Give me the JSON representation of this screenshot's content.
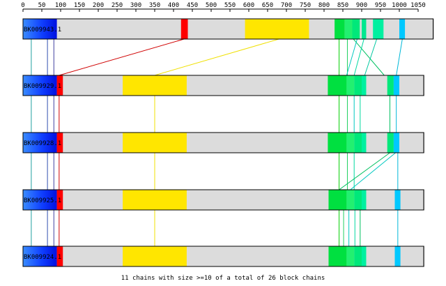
{
  "axis": {
    "ticks": [
      0,
      50,
      100,
      150,
      200,
      250,
      300,
      350,
      400,
      450,
      500,
      550,
      600,
      650,
      700,
      750,
      800,
      850,
      900,
      950,
      1000,
      1050
    ],
    "max": 1050
  },
  "sequences": [
    {
      "id": "BK009943.1",
      "length": 1090,
      "blocks": [
        {
          "start": 0,
          "end": 90,
          "color": "blue-gradient"
        },
        {
          "start": 420,
          "end": 438,
          "color": "#ff0000"
        },
        {
          "start": 590,
          "end": 760,
          "color": "#ffe600"
        },
        {
          "start": 828,
          "end": 855,
          "color": "#00e040"
        },
        {
          "start": 855,
          "end": 875,
          "color": "#22f070"
        },
        {
          "start": 875,
          "end": 895,
          "color": "#00e87a"
        },
        {
          "start": 900,
          "end": 912,
          "color": "#00e890"
        },
        {
          "start": 930,
          "end": 958,
          "color": "#00f0a0"
        },
        {
          "start": 1000,
          "end": 1015,
          "color": "#00c8ff"
        }
      ]
    },
    {
      "id": "BK009929.1",
      "length": 1065,
      "blocks": [
        {
          "start": 0,
          "end": 90,
          "color": "blue-gradient"
        },
        {
          "start": 90,
          "end": 106,
          "color": "#ff0000"
        },
        {
          "start": 265,
          "end": 435,
          "color": "#ffe600"
        },
        {
          "start": 810,
          "end": 860,
          "color": "#00e040"
        },
        {
          "start": 860,
          "end": 880,
          "color": "#22f070"
        },
        {
          "start": 880,
          "end": 900,
          "color": "#00e87a"
        },
        {
          "start": 900,
          "end": 912,
          "color": "#00f0a0"
        },
        {
          "start": 968,
          "end": 985,
          "color": "#00e87a"
        },
        {
          "start": 985,
          "end": 1000,
          "color": "#00c8ff"
        }
      ]
    },
    {
      "id": "BK009928.1",
      "length": 1065,
      "blocks": [
        {
          "start": 0,
          "end": 90,
          "color": "blue-gradient"
        },
        {
          "start": 90,
          "end": 106,
          "color": "#ff0000"
        },
        {
          "start": 265,
          "end": 435,
          "color": "#ffe600"
        },
        {
          "start": 810,
          "end": 860,
          "color": "#00e040"
        },
        {
          "start": 860,
          "end": 880,
          "color": "#22f070"
        },
        {
          "start": 880,
          "end": 900,
          "color": "#00e87a"
        },
        {
          "start": 900,
          "end": 912,
          "color": "#00f0a0"
        },
        {
          "start": 968,
          "end": 985,
          "color": "#00e87a"
        },
        {
          "start": 985,
          "end": 1000,
          "color": "#00c8ff"
        }
      ]
    },
    {
      "id": "BK009925.1",
      "length": 1065,
      "blocks": [
        {
          "start": 0,
          "end": 90,
          "color": "blue-gradient"
        },
        {
          "start": 90,
          "end": 106,
          "color": "#ff0000"
        },
        {
          "start": 265,
          "end": 435,
          "color": "#ffe600"
        },
        {
          "start": 812,
          "end": 860,
          "color": "#00e040"
        },
        {
          "start": 860,
          "end": 880,
          "color": "#22f070"
        },
        {
          "start": 880,
          "end": 900,
          "color": "#00e87a"
        },
        {
          "start": 900,
          "end": 912,
          "color": "#00f0a0"
        },
        {
          "start": 988,
          "end": 1003,
          "color": "#00c8ff"
        }
      ]
    },
    {
      "id": "BK009924.1",
      "length": 1065,
      "blocks": [
        {
          "start": 0,
          "end": 90,
          "color": "blue-gradient"
        },
        {
          "start": 90,
          "end": 106,
          "color": "#ff0000"
        },
        {
          "start": 265,
          "end": 435,
          "color": "#ffe600"
        },
        {
          "start": 812,
          "end": 860,
          "color": "#00e040"
        },
        {
          "start": 860,
          "end": 880,
          "color": "#22f070"
        },
        {
          "start": 880,
          "end": 900,
          "color": "#00e87a"
        },
        {
          "start": 900,
          "end": 912,
          "color": "#00f0a0"
        },
        {
          "start": 988,
          "end": 1003,
          "color": "#00c8ff"
        }
      ]
    }
  ],
  "links": [
    {
      "from": 0,
      "to": 1,
      "color": "#20a0a0",
      "a": 22,
      "b": 22
    },
    {
      "from": 0,
      "to": 1,
      "color": "#3050b0",
      "a": 65,
      "b": 65
    },
    {
      "from": 0,
      "to": 1,
      "color": "#4040a0",
      "a": 82,
      "b": 82
    },
    {
      "from": 0,
      "to": 1,
      "color": "#d00000",
      "a": 428,
      "b": 96
    },
    {
      "from": 0,
      "to": 1,
      "color": "#f0e000",
      "a": 680,
      "b": 350
    },
    {
      "from": 0,
      "to": 1,
      "color": "#00d000",
      "a": 840,
      "b": 840
    },
    {
      "from": 0,
      "to": 1,
      "color": "#20d060",
      "a": 862,
      "b": 862
    },
    {
      "from": 0,
      "to": 1,
      "color": "#00c060",
      "a": 878,
      "b": 960
    },
    {
      "from": 0,
      "to": 1,
      "color": "#00c8c0",
      "a": 888,
      "b": 860
    },
    {
      "from": 0,
      "to": 1,
      "color": "#00d8a0",
      "a": 906,
      "b": 880
    },
    {
      "from": 0,
      "to": 1,
      "color": "#00c8a0",
      "a": 940,
      "b": 908
    },
    {
      "from": 0,
      "to": 1,
      "color": "#00b8d8",
      "a": 1008,
      "b": 992
    },
    {
      "from": 1,
      "to": 2,
      "color": "#20a0a0",
      "a": 22,
      "b": 22
    },
    {
      "from": 1,
      "to": 2,
      "color": "#3050b0",
      "a": 65,
      "b": 65
    },
    {
      "from": 1,
      "to": 2,
      "color": "#4040a0",
      "a": 82,
      "b": 82
    },
    {
      "from": 1,
      "to": 2,
      "color": "#d00000",
      "a": 96,
      "b": 96
    },
    {
      "from": 1,
      "to": 2,
      "color": "#f0e000",
      "a": 350,
      "b": 350
    },
    {
      "from": 1,
      "to": 2,
      "color": "#00d000",
      "a": 840,
      "b": 840
    },
    {
      "from": 1,
      "to": 2,
      "color": "#20d060",
      "a": 862,
      "b": 862
    },
    {
      "from": 1,
      "to": 2,
      "color": "#00c8c0",
      "a": 880,
      "b": 880
    },
    {
      "from": 1,
      "to": 2,
      "color": "#00d8a0",
      "a": 896,
      "b": 896
    },
    {
      "from": 1,
      "to": 2,
      "color": "#00c060",
      "a": 975,
      "b": 975
    },
    {
      "from": 1,
      "to": 2,
      "color": "#00b8d8",
      "a": 992,
      "b": 992
    },
    {
      "from": 2,
      "to": 3,
      "color": "#20a0a0",
      "a": 22,
      "b": 22
    },
    {
      "from": 2,
      "to": 3,
      "color": "#3050b0",
      "a": 65,
      "b": 65
    },
    {
      "from": 2,
      "to": 3,
      "color": "#4040a0",
      "a": 82,
      "b": 82
    },
    {
      "from": 2,
      "to": 3,
      "color": "#d00000",
      "a": 96,
      "b": 96
    },
    {
      "from": 2,
      "to": 3,
      "color": "#f0e000",
      "a": 350,
      "b": 350
    },
    {
      "from": 2,
      "to": 3,
      "color": "#00d000",
      "a": 840,
      "b": 840
    },
    {
      "from": 2,
      "to": 3,
      "color": "#20d060",
      "a": 862,
      "b": 862
    },
    {
      "from": 2,
      "to": 3,
      "color": "#00d8a0",
      "a": 880,
      "b": 880
    },
    {
      "from": 2,
      "to": 3,
      "color": "#00c060",
      "a": 975,
      "b": 840
    },
    {
      "from": 2,
      "to": 3,
      "color": "#00c8c0",
      "a": 990,
      "b": 870
    },
    {
      "from": 2,
      "to": 3,
      "color": "#00b8d8",
      "a": 996,
      "b": 996
    },
    {
      "from": 3,
      "to": 4,
      "color": "#20a0a0",
      "a": 22,
      "b": 22
    },
    {
      "from": 3,
      "to": 4,
      "color": "#3050b0",
      "a": 65,
      "b": 65
    },
    {
      "from": 3,
      "to": 4,
      "color": "#4040a0",
      "a": 82,
      "b": 82
    },
    {
      "from": 3,
      "to": 4,
      "color": "#d00000",
      "a": 96,
      "b": 96
    },
    {
      "from": 3,
      "to": 4,
      "color": "#f0e000",
      "a": 350,
      "b": 350
    },
    {
      "from": 3,
      "to": 4,
      "color": "#00d000",
      "a": 840,
      "b": 840
    },
    {
      "from": 3,
      "to": 4,
      "color": "#20d060",
      "a": 852,
      "b": 852
    },
    {
      "from": 3,
      "to": 4,
      "color": "#00c8c0",
      "a": 866,
      "b": 866
    },
    {
      "from": 3,
      "to": 4,
      "color": "#00d8a0",
      "a": 882,
      "b": 882
    },
    {
      "from": 3,
      "to": 4,
      "color": "#00c060",
      "a": 896,
      "b": 896
    },
    {
      "from": 3,
      "to": 4,
      "color": "#00b8d8",
      "a": 996,
      "b": 996
    }
  ],
  "footer": {
    "text": "11 chains with size >=10 of a total of 26 block chains"
  }
}
